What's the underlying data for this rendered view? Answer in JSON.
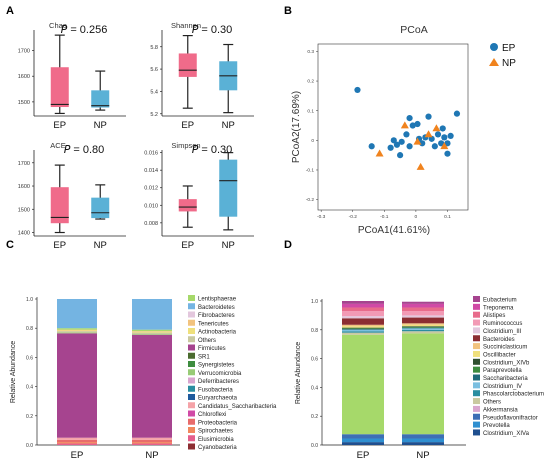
{
  "panels": {
    "A": {
      "letter": "A",
      "charts": [
        {
          "title": "Chao",
          "pvalue": "𝘗 = 0.256",
          "ticks": [
            1500,
            1600,
            1700
          ],
          "ylim": [
            1445,
            1780
          ],
          "groups": [
            {
              "name": "EP",
              "color": "#f06b8a",
              "min": 1455,
              "q1": 1480,
              "median": 1490,
              "q3": 1635,
              "max": 1760
            },
            {
              "name": "NP",
              "color": "#5ab1d6",
              "min": 1468,
              "q1": 1478,
              "median": 1485,
              "q3": 1545,
              "max": 1620
            }
          ]
        },
        {
          "title": "Shannon",
          "pvalue": "𝘗 = 0.30",
          "ticks": [
            5.2,
            5.4,
            5.6,
            5.8
          ],
          "ylim": [
            5.18,
            5.95
          ],
          "groups": [
            {
              "name": "EP",
              "color": "#f06b8a",
              "min": 5.25,
              "q1": 5.53,
              "median": 5.59,
              "q3": 5.74,
              "max": 5.9
            },
            {
              "name": "NP",
              "color": "#5ab1d6",
              "min": 5.21,
              "q1": 5.41,
              "median": 5.54,
              "q3": 5.67,
              "max": 5.82
            }
          ]
        },
        {
          "title": "ACE",
          "pvalue": "𝘗 = 0.80",
          "ticks": [
            1400,
            1500,
            1600,
            1700
          ],
          "ylim": [
            1385,
            1755
          ],
          "groups": [
            {
              "name": "EP",
              "color": "#f06b8a",
              "min": 1400,
              "q1": 1440,
              "median": 1465,
              "q3": 1595,
              "max": 1690
            },
            {
              "name": "NP",
              "color": "#5ab1d6",
              "min": 1458,
              "q1": 1462,
              "median": 1485,
              "q3": 1550,
              "max": 1605
            }
          ]
        },
        {
          "title": "Simpson",
          "pvalue": "𝘗 = 0.30",
          "ticks": [
            0.008,
            0.01,
            0.012,
            0.014,
            0.016
          ],
          "tick_labels": [
            "0.008",
            "0.010",
            "0.012",
            "0.014",
            "0.016"
          ],
          "ylim": [
            0.0065,
            0.0163
          ],
          "groups": [
            {
              "name": "EP",
              "color": "#f06b8a",
              "min": 0.0075,
              "q1": 0.0093,
              "median": 0.0098,
              "q3": 0.0107,
              "max": 0.0122
            },
            {
              "name": "NP",
              "color": "#5ab1d6",
              "min": 0.0072,
              "q1": 0.0087,
              "median": 0.0128,
              "q3": 0.0152,
              "max": 0.016
            }
          ]
        }
      ]
    },
    "B": {
      "letter": "B",
      "title": "PCoA",
      "xlabel": "PCoA1(41.61%)",
      "ylabel": "PCoA2(17.69%)",
      "xlim": [
        -0.31,
        0.165
      ],
      "ylim": [
        -0.235,
        0.325
      ],
      "xticks": [
        -0.3,
        -0.2,
        -0.1,
        0,
        0.1
      ],
      "xtick_labels": [
        "-0.3",
        "-0.2",
        "-0.1",
        "0",
        "0.1"
      ],
      "yticks": [
        -0.2,
        -0.1,
        0,
        0.1,
        0.2,
        0.3
      ],
      "yticks_labels": [
        "-0.2",
        "-0.1",
        "0",
        "0.1",
        "0.2",
        "0.3"
      ],
      "legend": [
        {
          "name": "EP",
          "color": "#1f77b4",
          "shape": "circle"
        },
        {
          "name": "NP",
          "color": "#f0831e",
          "shape": "triangle"
        }
      ],
      "EP": [
        [
          -0.185,
          0.17
        ],
        [
          -0.14,
          -0.02
        ],
        [
          -0.08,
          -0.025
        ],
        [
          -0.07,
          0.0
        ],
        [
          -0.06,
          -0.015
        ],
        [
          -0.05,
          -0.05
        ],
        [
          -0.045,
          -0.005
        ],
        [
          -0.03,
          0.02
        ],
        [
          -0.02,
          0.075
        ],
        [
          -0.02,
          -0.02
        ],
        [
          -0.01,
          0.05
        ],
        [
          0.01,
          0.005
        ],
        [
          0.02,
          -0.01
        ],
        [
          0.03,
          0.01
        ],
        [
          0.04,
          0.08
        ],
        [
          0.05,
          0.005
        ],
        [
          0.06,
          -0.02
        ],
        [
          0.07,
          0.02
        ],
        [
          0.085,
          0.04
        ],
        [
          0.09,
          0.01
        ],
        [
          0.1,
          -0.01
        ],
        [
          0.1,
          -0.045
        ],
        [
          0.11,
          0.015
        ],
        [
          0.13,
          0.09
        ],
        [
          0.005,
          0.055
        ],
        [
          0.08,
          -0.01
        ]
      ],
      "NP": [
        [
          -0.115,
          -0.045
        ],
        [
          -0.035,
          0.05
        ],
        [
          0.005,
          -0.005
        ],
        [
          0.015,
          -0.09
        ],
        [
          0.04,
          0.02
        ],
        [
          0.065,
          0.04
        ],
        [
          0.09,
          -0.02
        ]
      ]
    },
    "C": {
      "letter": "C",
      "ylabel": "Relative Abundance",
      "categories": [
        "EP",
        "NP"
      ],
      "yticks": [
        0.0,
        0.2,
        0.4,
        0.6,
        0.8,
        1.0
      ],
      "ytick_labels": [
        "0.0",
        "0.2",
        "0.4",
        "0.6",
        "0.8",
        "1.0"
      ],
      "legend": [
        {
          "name": "Lentisphaerae",
          "color": "#a6d96a"
        },
        {
          "name": "Bacteroidetes",
          "color": "#74b4e2"
        },
        {
          "name": "Fibrobacteres",
          "color": "#e3c7dd"
        },
        {
          "name": "Tenericutes",
          "color": "#f2c37e"
        },
        {
          "name": "Actinobacteria",
          "color": "#efe07c"
        },
        {
          "name": "Others",
          "color": "#c9c9a0"
        },
        {
          "name": "Firmicutes",
          "color": "#a6448f"
        },
        {
          "name": "SR1",
          "color": "#4b6b2f"
        },
        {
          "name": "Synergistetes",
          "color": "#3d8c3f"
        },
        {
          "name": "Verrucomicrobia",
          "color": "#98cb76"
        },
        {
          "name": "Deferribacteres",
          "color": "#d9a6cf"
        },
        {
          "name": "Fusobacteria",
          "color": "#2b8ea0"
        },
        {
          "name": "Euryarchaeota",
          "color": "#1f5a9d"
        },
        {
          "name": "Candidatus_Saccharibacteria",
          "color": "#f5a3a8"
        },
        {
          "name": "Chloroflexi",
          "color": "#d04aa6"
        },
        {
          "name": "Proteobacteria",
          "color": "#e86b6b"
        },
        {
          "name": "Spirochaetes",
          "color": "#f1885d"
        },
        {
          "name": "Elusimicrobia",
          "color": "#e55f8c"
        },
        {
          "name": "Cyanobacteria",
          "color": "#8c2d32"
        }
      ],
      "stacks": {
        "EP": [
          {
            "color": "#e55f8c",
            "value": 0.01
          },
          {
            "color": "#f1885d",
            "value": 0.01
          },
          {
            "color": "#e86b6b",
            "value": 0.015
          },
          {
            "color": "#f5a3a8",
            "value": 0.015
          },
          {
            "color": "#a6448f",
            "value": 0.715
          },
          {
            "color": "#98cb76",
            "value": 0.005
          },
          {
            "color": "#c9c9a0",
            "value": 0.01
          },
          {
            "color": "#efe07c",
            "value": 0.005
          },
          {
            "color": "#f2c37e",
            "value": 0.005
          },
          {
            "color": "#a6d96a",
            "value": 0.01
          },
          {
            "color": "#74b4e2",
            "value": 0.2
          }
        ],
        "NP": [
          {
            "color": "#e55f8c",
            "value": 0.01
          },
          {
            "color": "#f1885d",
            "value": 0.01
          },
          {
            "color": "#e86b6b",
            "value": 0.015
          },
          {
            "color": "#f5a3a8",
            "value": 0.015
          },
          {
            "color": "#a6448f",
            "value": 0.705
          },
          {
            "color": "#98cb76",
            "value": 0.005
          },
          {
            "color": "#c9c9a0",
            "value": 0.01
          },
          {
            "color": "#efe07c",
            "value": 0.005
          },
          {
            "color": "#f2c37e",
            "value": 0.005
          },
          {
            "color": "#a6d96a",
            "value": 0.01
          },
          {
            "color": "#74b4e2",
            "value": 0.21
          }
        ]
      }
    },
    "D": {
      "letter": "D",
      "ylabel": "Relative Abundance",
      "categories": [
        "EP",
        "NP"
      ],
      "yticks": [
        0.0,
        0.2,
        0.4,
        0.6,
        0.8,
        1.0
      ],
      "ytick_labels": [
        "0.0",
        "0.2",
        "0.4",
        "0.6",
        "0.8",
        "1.0"
      ],
      "legend": [
        {
          "name": "Eubacterium",
          "color": "#a6448f"
        },
        {
          "name": "Treponema",
          "color": "#d04aa6"
        },
        {
          "name": "Alistipes",
          "color": "#e86b8b"
        },
        {
          "name": "Ruminococcus",
          "color": "#f29ab5"
        },
        {
          "name": "Clostridium_III",
          "color": "#e3c7dd"
        },
        {
          "name": "Bacteroides",
          "color": "#8c2d32"
        },
        {
          "name": "Succiniclasticum",
          "color": "#f2c37e"
        },
        {
          "name": "Oscillibacter",
          "color": "#efe07c"
        },
        {
          "name": "Clostridium_XIVb",
          "color": "#2f4f2f"
        },
        {
          "name": "Paraprevotella",
          "color": "#3d8c3f"
        },
        {
          "name": "Saccharibacteria",
          "color": "#1f6b7a"
        },
        {
          "name": "Clostridium_IV",
          "color": "#7bbfe0"
        },
        {
          "name": "Phascolarctobacterium",
          "color": "#2b8ea0"
        },
        {
          "name": "Others",
          "color": "#c9c9a0"
        },
        {
          "name": "Akkermansia",
          "color": "#d9a6cf"
        },
        {
          "name": "Pseudoflavonifractor",
          "color": "#3d6fb5"
        },
        {
          "name": "Prevotella",
          "color": "#2f8fd0"
        },
        {
          "name": "Clostridium_XIVa",
          "color": "#1f4f8f"
        }
      ],
      "stacks": {
        "EP": [
          {
            "color": "#1f4f8f",
            "value": 0.02
          },
          {
            "color": "#2f8fd0",
            "value": 0.025
          },
          {
            "color": "#3d6fb5",
            "value": 0.03
          },
          {
            "color": "#a6d96a",
            "value": 0.69
          },
          {
            "color": "#c9c9a0",
            "value": 0.015
          },
          {
            "color": "#2b8ea0",
            "value": 0.01
          },
          {
            "color": "#7bbfe0",
            "value": 0.01
          },
          {
            "color": "#1f6b7a",
            "value": 0.005
          },
          {
            "color": "#3d8c3f",
            "value": 0.005
          },
          {
            "color": "#2f4f2f",
            "value": 0.005
          },
          {
            "color": "#efe07c",
            "value": 0.01
          },
          {
            "color": "#f2c37e",
            "value": 0.01
          },
          {
            "color": "#8c2d32",
            "value": 0.045
          },
          {
            "color": "#e3c7dd",
            "value": 0.015
          },
          {
            "color": "#f29ab5",
            "value": 0.035
          },
          {
            "color": "#e86b8b",
            "value": 0.025
          },
          {
            "color": "#d04aa6",
            "value": 0.025
          },
          {
            "color": "#a6448f",
            "value": 0.02
          }
        ],
        "NP": [
          {
            "color": "#1f4f8f",
            "value": 0.02
          },
          {
            "color": "#2f8fd0",
            "value": 0.025
          },
          {
            "color": "#3d6fb5",
            "value": 0.03
          },
          {
            "color": "#a6d96a",
            "value": 0.7
          },
          {
            "color": "#c9c9a0",
            "value": 0.015
          },
          {
            "color": "#2b8ea0",
            "value": 0.01
          },
          {
            "color": "#7bbfe0",
            "value": 0.01
          },
          {
            "color": "#1f6b7a",
            "value": 0.005
          },
          {
            "color": "#3d8c3f",
            "value": 0.005
          },
          {
            "color": "#2f4f2f",
            "value": 0.005
          },
          {
            "color": "#efe07c",
            "value": 0.01
          },
          {
            "color": "#f2c37e",
            "value": 0.01
          },
          {
            "color": "#8c2d32",
            "value": 0.04
          },
          {
            "color": "#e3c7dd",
            "value": 0.015
          },
          {
            "color": "#f29ab5",
            "value": 0.03
          },
          {
            "color": "#e86b8b",
            "value": 0.025
          },
          {
            "color": "#d04aa6",
            "value": 0.025
          },
          {
            "color": "#a6448f",
            "value": 0.015
          }
        ]
      }
    }
  }
}
